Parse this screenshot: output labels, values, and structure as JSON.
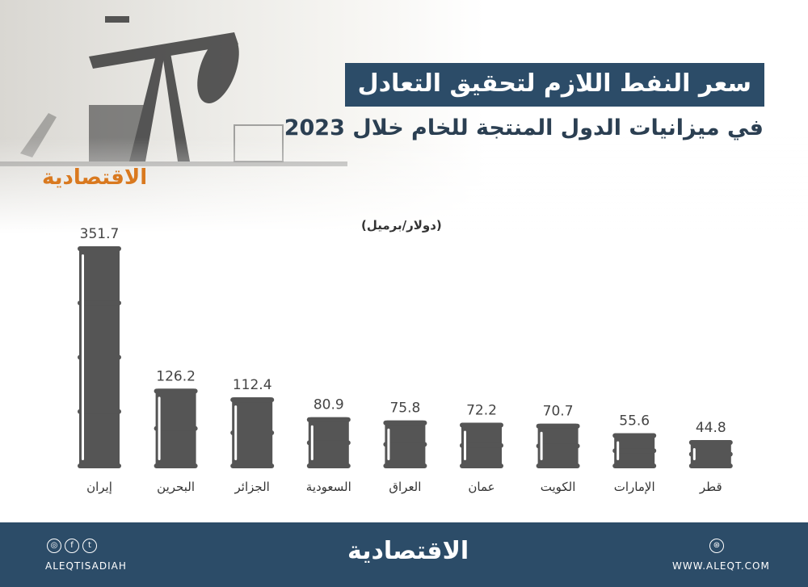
{
  "header": {
    "logo": "الاقتصادية",
    "title": "سعر النفط اللازم لتحقيق التعادل",
    "subtitle": "في ميزانيات الدول المنتجة للخام خلال 2023",
    "unit": "(دولار/برميل)"
  },
  "chart_data": {
    "type": "bar",
    "mark": "oil-barrel",
    "categories": [
      "إيران",
      "البحرين",
      "الجزائر",
      "السعودية",
      "العراق",
      "عمان",
      "الكويت",
      "الإمارات",
      "قطر"
    ],
    "values": [
      351.7,
      126.2,
      112.4,
      80.9,
      75.8,
      72.2,
      70.7,
      55.6,
      44.8
    ],
    "value_labels": [
      "351.7",
      "126.2",
      "112.4",
      "80.9",
      "75.8",
      "72.2",
      "70.7",
      "55.6",
      "44.8"
    ],
    "ylabel": "(دولار/برميل)",
    "bar_color": "#555555"
  },
  "footer": {
    "social_icons": [
      "instagram-icon",
      "facebook-icon",
      "twitter-icon"
    ],
    "handle": "ALEQTISADIAH",
    "logo": "الاقتصادية",
    "website": "WWW.ALEQT.COM",
    "background": "#2c4c68"
  }
}
